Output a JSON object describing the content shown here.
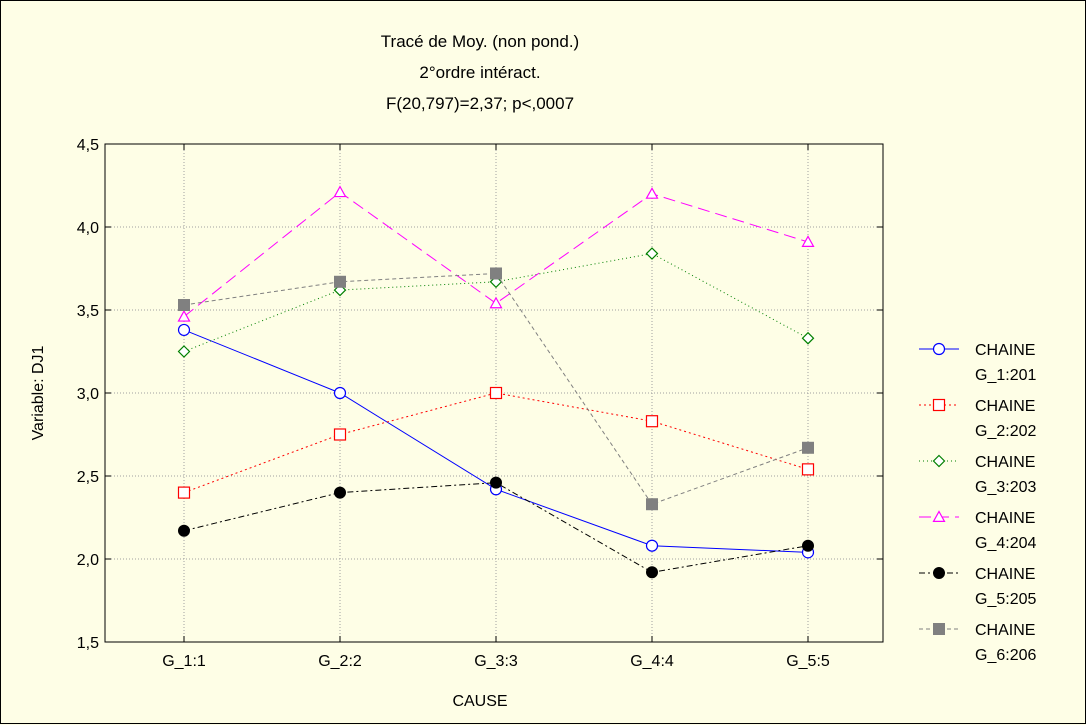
{
  "chart_data": {
    "type": "line",
    "title": "Tracé de Moy. (non pond.)",
    "subtitle": "2°ordre intéract.",
    "stats": "F(20,797)=2,37; p<,0007",
    "xlabel": "CAUSE",
    "ylabel": "Variable: DJ1",
    "categories": [
      "G_1:1",
      "G_2:2",
      "G_3:3",
      "G_4:4",
      "G_5:5"
    ],
    "ylim": [
      1.5,
      4.5
    ],
    "yticks": [
      "1,5",
      "2,0",
      "2,5",
      "3,0",
      "3,5",
      "4,0",
      "4,5"
    ],
    "grid": true,
    "legend_position": "right",
    "series": [
      {
        "name": "CHAINE G_1:201",
        "label1": "CHAINE",
        "label2": "G_1:201",
        "color": "#0000ff",
        "marker": "circle-open",
        "dash": "",
        "values": [
          3.38,
          3.0,
          2.42,
          2.08,
          2.04
        ]
      },
      {
        "name": "CHAINE G_2:202",
        "label1": "CHAINE",
        "label2": "G_2:202",
        "color": "#ff0000",
        "marker": "square-open",
        "dash": "2,3",
        "values": [
          2.4,
          2.75,
          3.0,
          2.83,
          2.54
        ]
      },
      {
        "name": "CHAINE G_3:203",
        "label1": "CHAINE",
        "label2": "G_3:203",
        "color": "#008000",
        "marker": "diamond-open",
        "dash": "1,3",
        "values": [
          3.25,
          3.62,
          3.67,
          3.84,
          3.33
        ]
      },
      {
        "name": "CHAINE G_4:204",
        "label1": "CHAINE",
        "label2": "G_4:204",
        "color": "#ff00ff",
        "marker": "triangle-open",
        "dash": "12,6",
        "values": [
          3.46,
          4.21,
          3.54,
          4.2,
          3.91
        ]
      },
      {
        "name": "CHAINE G_5:205",
        "label1": "CHAINE",
        "label2": "G_5:205",
        "color": "#000000",
        "marker": "circle-filled",
        "dash": "6,3,2,3",
        "values": [
          2.17,
          2.4,
          2.46,
          1.92,
          2.08
        ]
      },
      {
        "name": "CHAINE G_6:206",
        "label1": "CHAINE",
        "label2": "G_6:206",
        "color": "#808080",
        "marker": "square-filled",
        "dash": "4,3",
        "values": [
          3.53,
          3.67,
          3.72,
          2.33,
          2.67
        ]
      }
    ]
  }
}
